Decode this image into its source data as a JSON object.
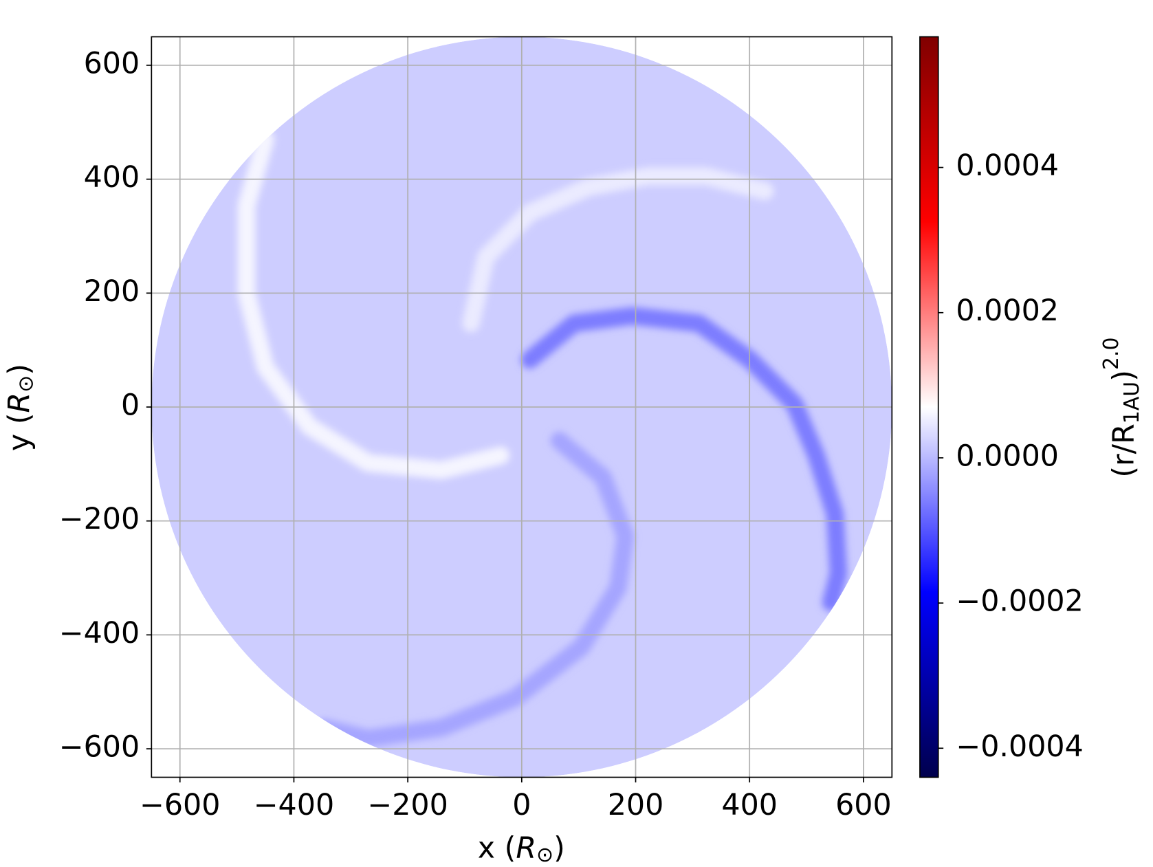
{
  "chart_data": {
    "type": "heatmap",
    "x_label": {
      "text": "x (",
      "var": "R",
      "sub": "⊙",
      "close": ")"
    },
    "y_label": {
      "text": "y (",
      "var": "R",
      "sub": "⊙",
      "close": ")"
    },
    "colorbar_label": {
      "text": "(r/R",
      "sub": "1AU",
      "close": ")",
      "sup": "2.0"
    },
    "colormap": "seismic",
    "clim": [
      -0.00044,
      0.00058
    ],
    "cticks": [
      {
        "value": -0.0004,
        "label": "−0.0004"
      },
      {
        "value": -0.0002,
        "label": "−0.0002"
      },
      {
        "value": 0,
        "label": "0.0000"
      },
      0.0002,
      0.0004
    ],
    "xlim": [
      -650,
      650
    ],
    "ylim": [
      -650,
      650
    ],
    "xticks": [
      {
        "value": -600,
        "label": "−600"
      },
      {
        "value": -400,
        "label": "−400"
      },
      {
        "value": -200,
        "label": "−200"
      },
      0,
      200,
      400,
      600
    ],
    "yticks": [
      {
        "value": -600,
        "label": "−600"
      },
      {
        "value": -400,
        "label": "−400"
      },
      {
        "value": -200,
        "label": "−200"
      },
      0,
      200,
      400,
      600
    ],
    "grid": true,
    "disk_radius": 650,
    "disk_value": 2e-05,
    "arms": [
      {
        "value": -6e-05,
        "x": [
          14,
          92,
          195,
          311,
          401,
          479,
          517,
          550,
          556,
          543
        ],
        "y": [
          83,
          147,
          160,
          147,
          83,
          5,
          -85,
          -188,
          -292,
          -343
        ]
      },
      {
        "value": 5e-05,
        "x": [
          -89,
          -63,
          14,
          117,
          221,
          324,
          427
        ],
        "y": [
          147,
          263,
          341,
          386,
          405,
          405,
          379
        ]
      },
      {
        "value": 6e-05,
        "x": [
          -450,
          -483,
          -483,
          -450,
          -373,
          -270,
          -141,
          -37
        ],
        "y": [
          470,
          354,
          199,
          70,
          -34,
          -98,
          -111,
          -85
        ]
      },
      {
        "value": -2e-05,
        "x": [
          66,
          143,
          182,
          169,
          105,
          -12,
          -141,
          -270,
          -347
        ],
        "y": [
          -59,
          -124,
          -227,
          -317,
          -421,
          -511,
          -563,
          -582,
          -563
        ]
      }
    ]
  }
}
